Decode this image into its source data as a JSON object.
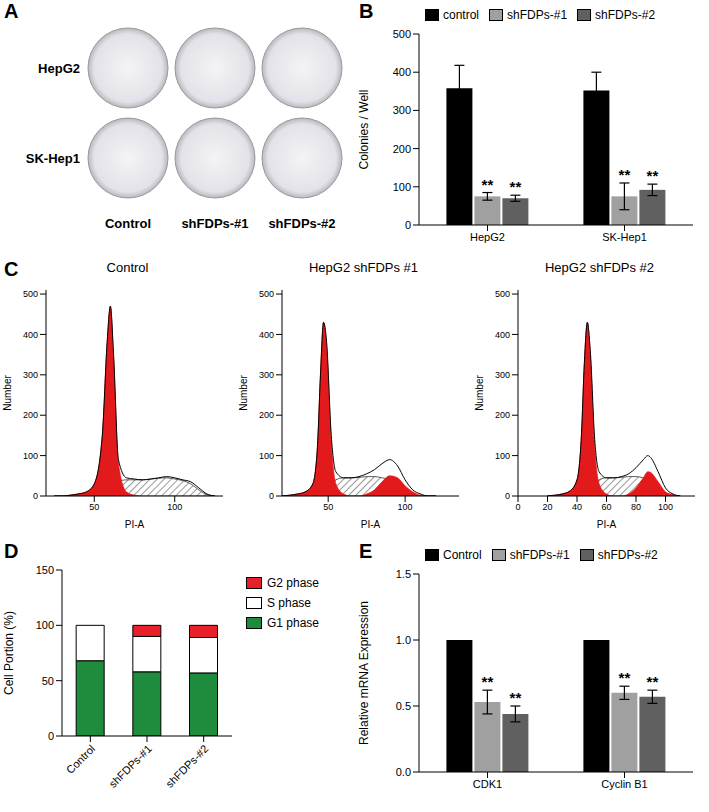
{
  "chart_data": [
    {
      "panel": "A",
      "type": "image",
      "rows": [
        "HepG2",
        "SK-Hep1"
      ],
      "columns": [
        "Control",
        "shFDPs-#1",
        "shFDPs-#2"
      ]
    },
    {
      "panel": "B",
      "type": "bar",
      "categories": [
        "HepG2",
        "SK-Hep1"
      ],
      "ylabel": "Colonies / Well",
      "ylim": [
        0,
        500
      ],
      "yticks": [
        0,
        100,
        200,
        300,
        400,
        500
      ],
      "legend": "top",
      "series": [
        {
          "name": "control",
          "color": "#000000",
          "values": [
            358,
            352
          ],
          "errors": [
            60,
            48
          ]
        },
        {
          "name": "shFDPs-#1",
          "color": "#a0a0a0",
          "values": [
            75,
            75
          ],
          "errors": [
            10,
            35
          ],
          "annotations": [
            "**",
            "**"
          ]
        },
        {
          "name": "shFDPs-#2",
          "color": "#606060",
          "values": [
            70,
            92
          ],
          "errors": [
            8,
            15
          ],
          "annotations": [
            "**",
            "**"
          ]
        }
      ]
    },
    {
      "panel": "C",
      "type": "histogram",
      "title": "Control",
      "xlabel": "PI-A",
      "ylabel": "Number",
      "xlim": [
        20,
        130
      ],
      "xticks": [
        50,
        100
      ],
      "ylim": [
        0,
        510
      ],
      "yticks": [
        0,
        100,
        200,
        300,
        400,
        500
      ],
      "x": [
        25,
        30,
        35,
        40,
        45,
        50,
        55,
        58,
        60,
        62,
        65,
        70,
        75,
        80,
        85,
        90,
        95,
        100,
        105,
        110,
        115,
        120,
        125
      ],
      "series": [
        {
          "type": "area",
          "color": "#333333",
          "line_style": "hatched",
          "values": [
            0,
            0,
            0,
            0,
            0,
            0,
            0,
            5,
            15,
            25,
            35,
            40,
            40,
            40,
            42,
            44,
            45,
            42,
            38,
            30,
            15,
            3,
            0
          ]
        },
        {
          "type": "area",
          "color": "#e31a1c",
          "values": [
            0,
            0,
            2,
            5,
            10,
            30,
            150,
            380,
            470,
            340,
            80,
            10,
            2,
            0,
            0,
            0,
            0,
            0,
            0,
            0,
            0,
            0,
            0
          ]
        },
        {
          "type": "line",
          "color": "#000000",
          "values": [
            0,
            0,
            2,
            5,
            10,
            30,
            150,
            380,
            470,
            350,
            90,
            45,
            42,
            40,
            42,
            45,
            48,
            45,
            40,
            35,
            20,
            5,
            0
          ]
        }
      ]
    },
    {
      "panel": "",
      "type": "histogram",
      "title": "HepG2 shFDPs #1",
      "xlabel": "PI-A",
      "ylabel": "Number",
      "xlim": [
        20,
        135
      ],
      "xticks": [
        50,
        100
      ],
      "ylim": [
        0,
        510
      ],
      "yticks": [
        0,
        100,
        200,
        300,
        400,
        500
      ],
      "x": [
        20,
        25,
        30,
        35,
        40,
        43,
        45,
        47,
        49,
        52,
        55,
        60,
        65,
        70,
        75,
        80,
        85,
        90,
        95,
        100,
        105,
        110,
        115,
        120
      ],
      "series": [
        {
          "type": "area",
          "color": "#333333",
          "line_style": "hatched",
          "values": [
            0,
            0,
            0,
            0,
            0,
            0,
            5,
            10,
            20,
            30,
            40,
            45,
            45,
            46,
            48,
            48,
            45,
            40,
            25,
            12,
            3,
            0,
            0,
            0
          ]
        },
        {
          "type": "area",
          "color": "#e31a1c",
          "values": [
            0,
            2,
            5,
            10,
            30,
            120,
            300,
            430,
            370,
            130,
            30,
            5,
            0,
            0,
            0,
            0,
            0,
            0,
            0,
            0,
            0,
            0,
            0,
            0
          ]
        },
        {
          "type": "area",
          "color": "#e31a1c",
          "values": [
            0,
            0,
            0,
            0,
            0,
            0,
            0,
            0,
            0,
            0,
            0,
            0,
            0,
            0,
            5,
            15,
            35,
            50,
            45,
            25,
            10,
            2,
            0,
            0
          ]
        },
        {
          "type": "line",
          "color": "#000000",
          "values": [
            0,
            2,
            5,
            10,
            30,
            120,
            300,
            430,
            380,
            150,
            60,
            45,
            45,
            48,
            55,
            65,
            80,
            90,
            75,
            40,
            15,
            5,
            0,
            0
          ]
        }
      ]
    },
    {
      "panel": "",
      "type": "histogram",
      "title": "HepG2 shFDPs #2",
      "xlabel": "PI-A",
      "ylabel": "Number",
      "xlim": [
        0,
        120
      ],
      "xticks": [
        0,
        20,
        40,
        60,
        80,
        100
      ],
      "ylim": [
        0,
        510
      ],
      "yticks": [
        0,
        100,
        200,
        300,
        400,
        500
      ],
      "x": [
        20,
        25,
        30,
        35,
        40,
        43,
        45,
        47,
        49,
        52,
        55,
        60,
        65,
        70,
        75,
        80,
        85,
        88,
        90,
        95,
        100,
        105,
        110
      ],
      "series": [
        {
          "type": "area",
          "color": "#333333",
          "line_style": "hatched",
          "values": [
            0,
            0,
            0,
            0,
            0,
            0,
            5,
            10,
            20,
            30,
            40,
            45,
            45,
            46,
            48,
            48,
            45,
            40,
            35,
            20,
            8,
            2,
            0
          ]
        },
        {
          "type": "area",
          "color": "#e31a1c",
          "values": [
            0,
            2,
            5,
            12,
            40,
            150,
            330,
            430,
            350,
            120,
            30,
            5,
            0,
            0,
            0,
            0,
            0,
            0,
            0,
            0,
            0,
            0,
            0
          ]
        },
        {
          "type": "area",
          "color": "#e31a1c",
          "values": [
            0,
            0,
            0,
            0,
            0,
            0,
            0,
            0,
            0,
            0,
            0,
            0,
            0,
            0,
            5,
            20,
            45,
            60,
            58,
            35,
            10,
            3,
            0
          ]
        },
        {
          "type": "line",
          "color": "#000000",
          "values": [
            0,
            2,
            5,
            12,
            40,
            150,
            330,
            430,
            360,
            140,
            60,
            45,
            45,
            48,
            55,
            70,
            90,
            100,
            95,
            60,
            20,
            5,
            0
          ]
        }
      ]
    },
    {
      "panel": "D",
      "type": "bar",
      "stacked": true,
      "categories": [
        "Control",
        "shFDPs-#1",
        "shFDPs-#2"
      ],
      "ylabel": "Cell Portion (%)",
      "ylim": [
        0,
        150
      ],
      "yticks": [
        0,
        50,
        100,
        150
      ],
      "legend": "right",
      "series": [
        {
          "name": "G1 phase",
          "color": "#1e8c3c",
          "values": [
            68,
            58,
            57
          ]
        },
        {
          "name": "S phase",
          "color": "#ffffff",
          "values": [
            32,
            32,
            32
          ]
        },
        {
          "name": "G2 phase",
          "color": "#e8202a",
          "values": [
            0,
            10,
            11
          ]
        }
      ]
    },
    {
      "panel": "E",
      "type": "bar",
      "categories": [
        "CDK1",
        "Cyclin B1"
      ],
      "ylabel": "Relative mRNA Expression",
      "ylim": [
        0,
        1.5
      ],
      "yticks": [
        {
          "value": 0,
          "label": "0.0"
        },
        {
          "value": 0.5,
          "label": "0.5"
        },
        {
          "value": 1,
          "label": "1.0"
        },
        {
          "value": 1.5,
          "label": "1.5"
        }
      ],
      "legend": "top",
      "series": [
        {
          "name": "Control",
          "color": "#000000",
          "values": [
            1,
            1
          ]
        },
        {
          "name": "shFDPs-#1",
          "color": "#a0a0a0",
          "values": [
            0.53,
            0.6
          ],
          "errors": [
            0.09,
            0.05
          ],
          "annotations": [
            "**",
            "**"
          ]
        },
        {
          "name": "shFDPs-#2",
          "color": "#606060",
          "values": [
            0.44,
            0.57
          ],
          "errors": [
            0.06,
            0.05
          ],
          "annotations": [
            "**",
            "**"
          ]
        }
      ]
    }
  ]
}
